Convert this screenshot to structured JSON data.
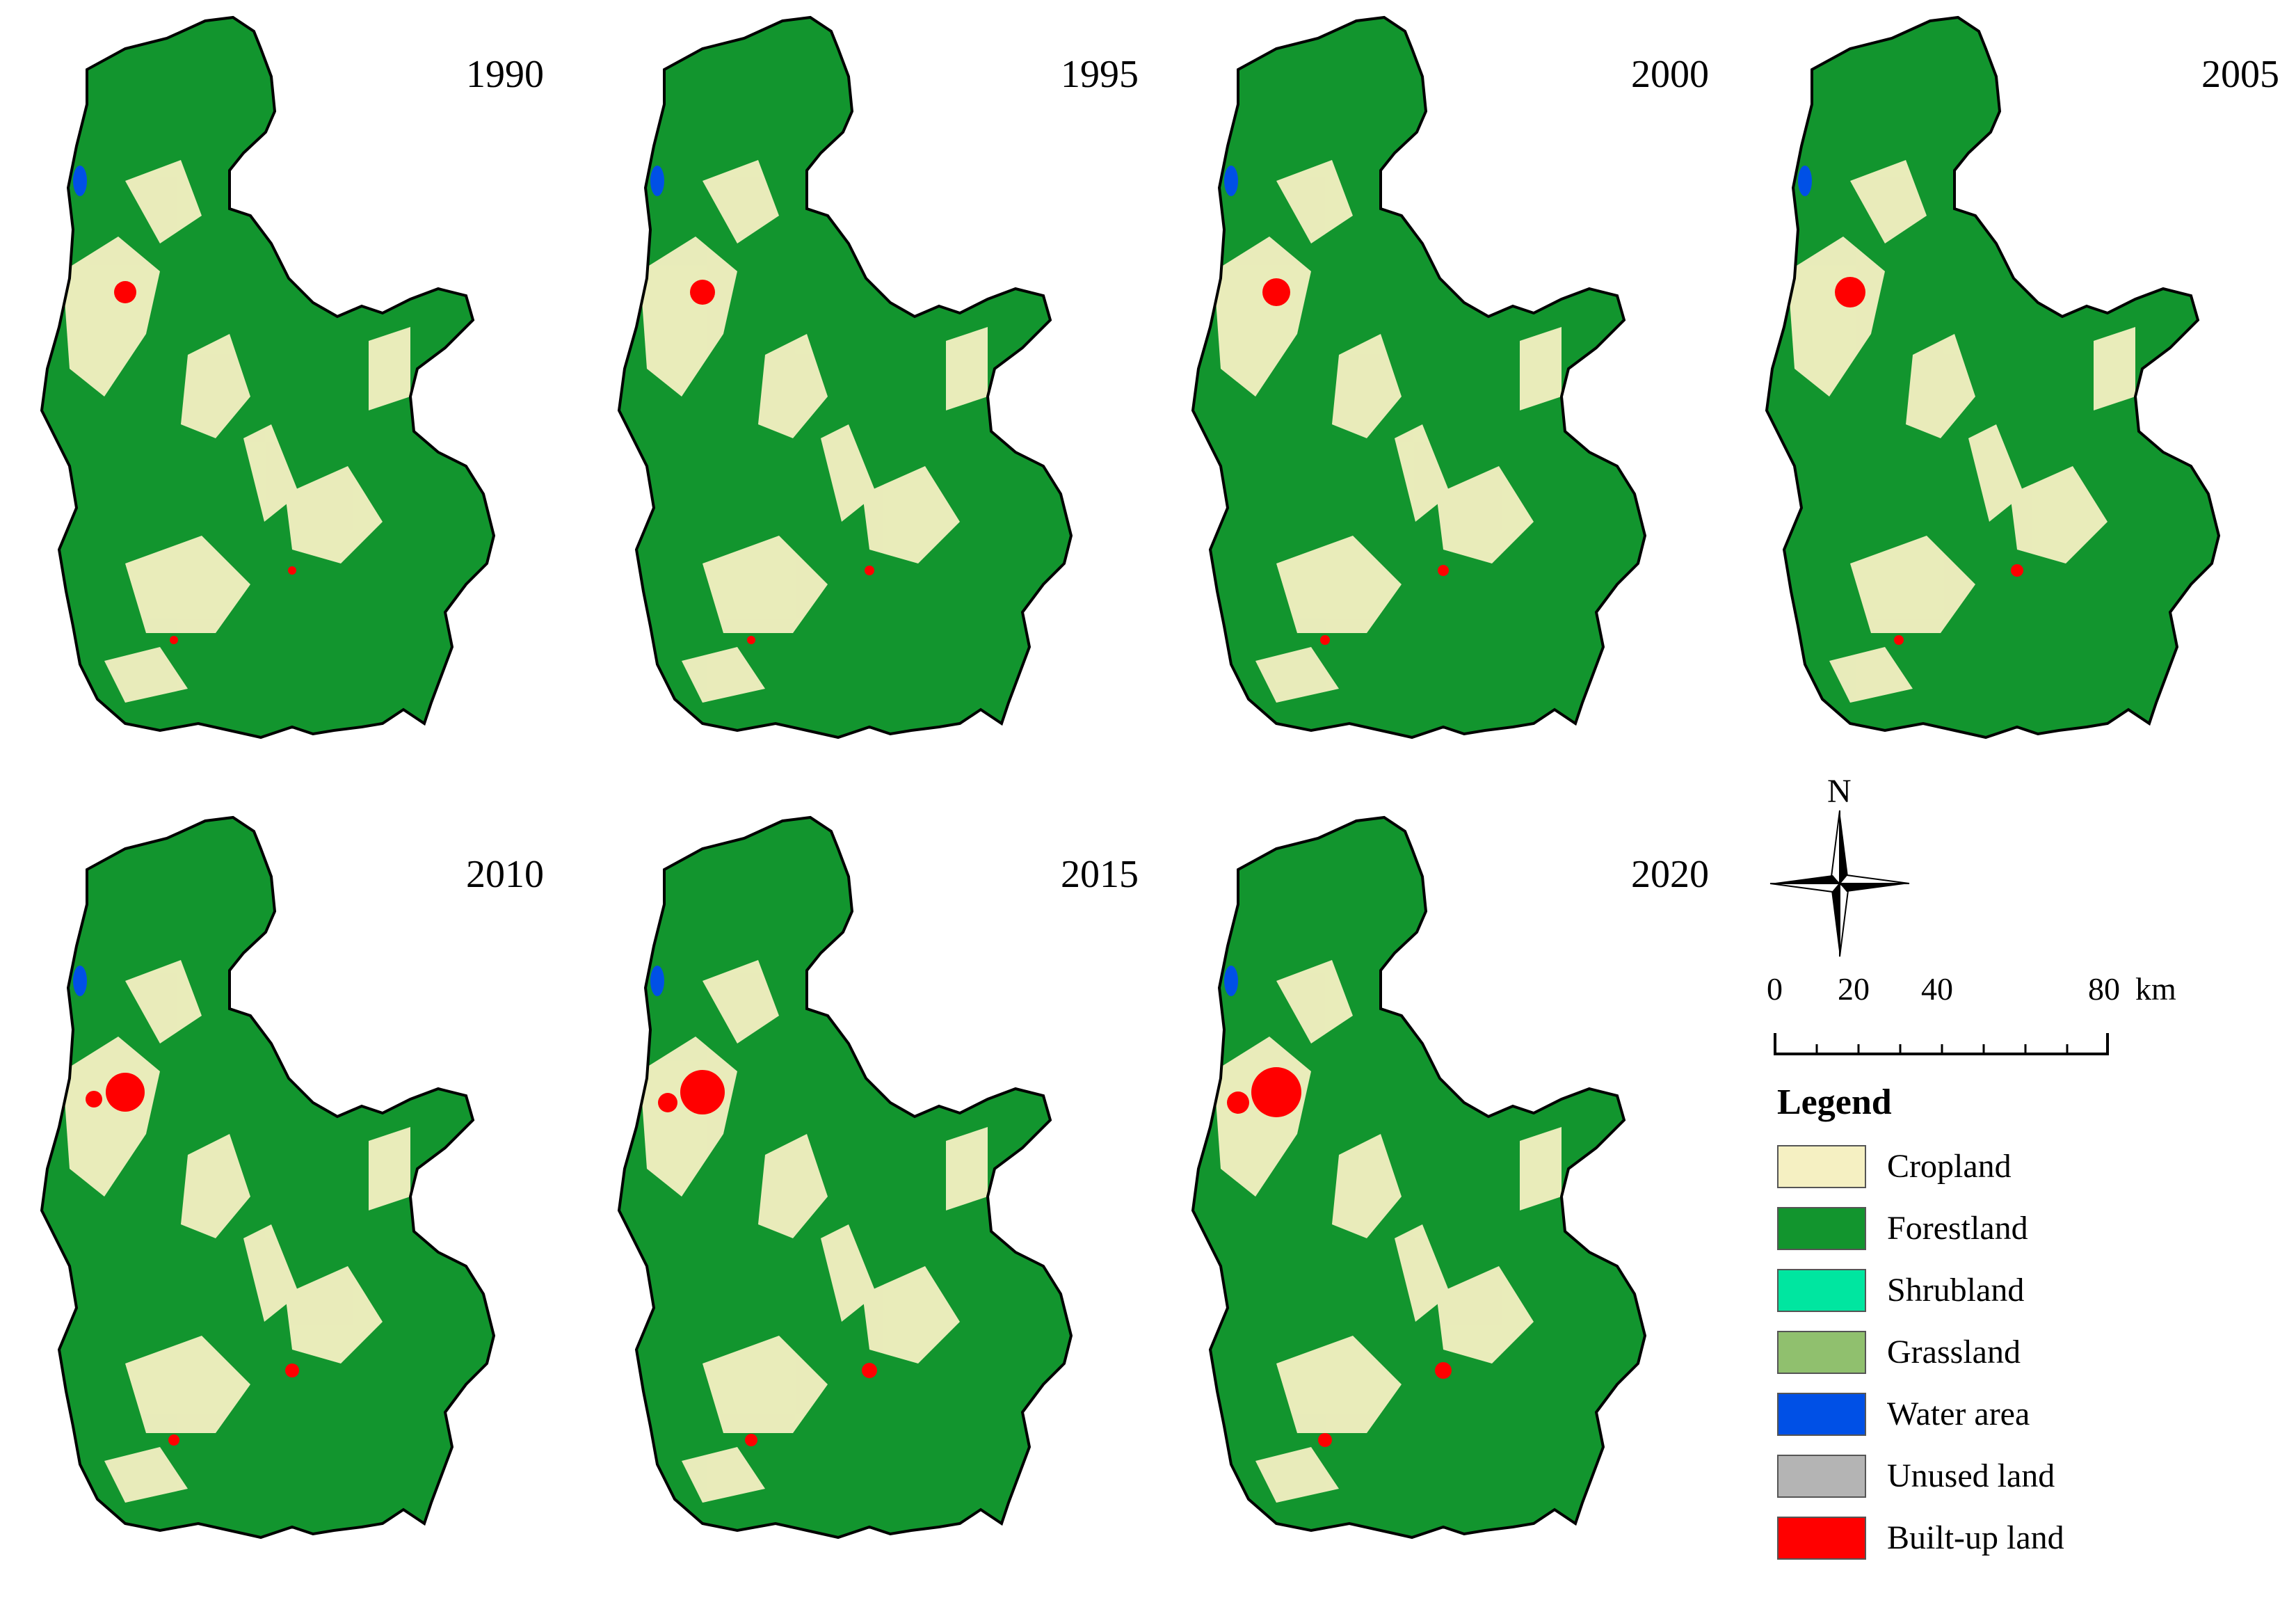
{
  "maps": [
    {
      "year": "1990"
    },
    {
      "year": "1995"
    },
    {
      "year": "2000"
    },
    {
      "year": "2005"
    },
    {
      "year": "2010"
    },
    {
      "year": "2015"
    },
    {
      "year": "2020"
    }
  ],
  "north_label": "N",
  "scale": {
    "ticks": [
      "0",
      "20",
      "40",
      "80"
    ],
    "unit": "km"
  },
  "legend": {
    "title": "Legend",
    "items": [
      {
        "label": "Cropland",
        "color": "#f5f0c2"
      },
      {
        "label": "Forestland",
        "color": "#12952e"
      },
      {
        "label": "Shrubland",
        "color": "#00e6a0"
      },
      {
        "label": "Grassland",
        "color": "#90c06e"
      },
      {
        "label": "Water area",
        "color": "#0050e6"
      },
      {
        "label": "Unused land",
        "color": "#b4b4b4"
      },
      {
        "label": "Built-up land",
        "color": "#ff0000"
      }
    ]
  }
}
